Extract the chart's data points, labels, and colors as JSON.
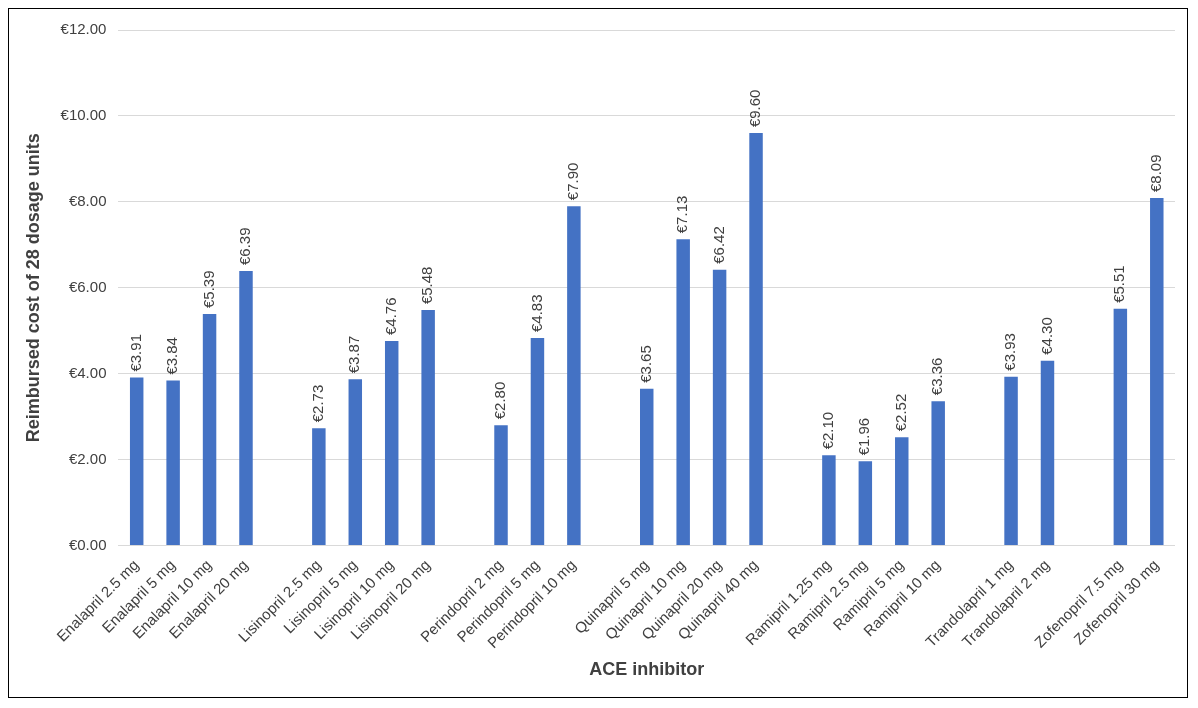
{
  "chart_data": {
    "type": "bar",
    "xlabel": "ACE inhibitor",
    "ylabel": "Reimbursed cost of 28 dosage units",
    "categories": [
      "Enalapril 2.5 mg",
      "Enalapril 5 mg",
      "Enalapril 10 mg",
      "Enalapril 20 mg",
      null,
      "Lisinopril 2.5 mg",
      "Lisinopril 5 mg",
      "Lisinopril 10 mg",
      "Lisinopril 20 mg",
      null,
      "Perindopril 2 mg",
      "Perindopril 5 mg",
      "Perindopril 10 mg",
      null,
      "Quinapril 5 mg",
      "Quinapril 10 mg",
      "Quinapril 20 mg",
      "Quinapril 40 mg",
      null,
      "Ramipril 1.25 mg",
      "Ramipril 2.5 mg",
      "Ramipril 5 mg",
      "Ramipril 10 mg",
      null,
      "Trandolapril 1 mg",
      "Trandolapril 2 mg",
      null,
      "Zofenopril 7.5 mg",
      "Zofenopril 30 mg"
    ],
    "values": [
      3.91,
      3.84,
      5.39,
      6.39,
      null,
      2.73,
      3.87,
      4.76,
      5.48,
      null,
      2.8,
      4.83,
      7.9,
      null,
      3.65,
      7.13,
      6.42,
      9.6,
      null,
      2.1,
      1.96,
      2.52,
      3.36,
      null,
      3.93,
      4.3,
      null,
      5.51,
      8.09
    ],
    "value_labels": [
      "€3.91",
      "€3.84",
      "€5.39",
      "€6.39",
      null,
      "€2.73",
      "€3.87",
      "€4.76",
      "€5.48",
      null,
      "€2.80",
      "€4.83",
      "€7.90",
      null,
      "€3.65",
      "€7.13",
      "€6.42",
      "€9.60",
      null,
      "€2.10",
      "€1.96",
      "€2.52",
      "€3.36",
      null,
      "€3.93",
      "€4.30",
      null,
      "€5.51",
      "€8.09"
    ],
    "color": "#4472c4",
    "ylim": [
      0,
      12
    ],
    "yticks": [
      {
        "value": 0,
        "label": "€0.00"
      },
      {
        "value": 2,
        "label": "€2.00"
      },
      {
        "value": 4,
        "label": "€4.00"
      },
      {
        "value": 6,
        "label": "€6.00"
      },
      {
        "value": 8,
        "label": "€8.00"
      },
      {
        "value": 10,
        "label": "€10.00"
      },
      {
        "value": 12,
        "label": "€12.00"
      }
    ],
    "grid": "y",
    "legend": false
  }
}
